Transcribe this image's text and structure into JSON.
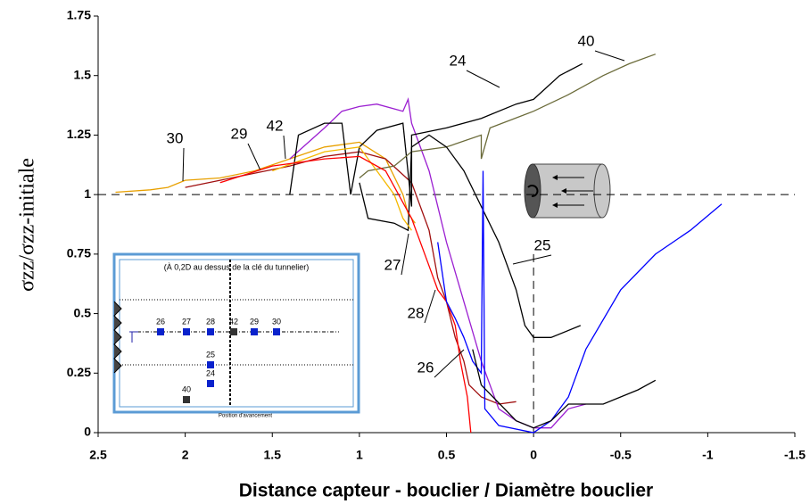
{
  "chart_data": {
    "type": "line",
    "x_label": "Distance capteur - bouclier / Diamètre bouclier",
    "y_label": "σzz/σzz-initiale",
    "xlim": [
      2.5,
      -1.5
    ],
    "xticks": [
      2.5,
      2,
      1.5,
      1,
      0.5,
      0,
      -0.5,
      -1,
      -1.5
    ],
    "ylim": [
      0,
      1.75
    ],
    "yticks": [
      0,
      0.25,
      0.5,
      0.75,
      1,
      1.25,
      1.5,
      1.75
    ],
    "hline": 1,
    "vline": 0,
    "series": [
      {
        "name": "30",
        "color": "#e8a000",
        "x": [
          2.4,
          2.2,
          2.1,
          2.0,
          1.8,
          1.6,
          1.4,
          1.2,
          1.0,
          0.85,
          0.75,
          0.72,
          0.68
        ],
        "values": [
          1.01,
          1.02,
          1.03,
          1.06,
          1.07,
          1.1,
          1.15,
          1.2,
          1.22,
          1.15,
          1.0,
          0.92,
          0.88
        ]
      },
      {
        "name": "29",
        "color": "#a01010",
        "x": [
          2.0,
          1.8,
          1.6,
          1.4,
          1.2,
          1.0,
          0.85,
          0.7,
          0.6,
          0.55,
          0.5,
          0.45,
          0.4,
          0.37,
          0.3,
          0.2,
          0.1
        ],
        "values": [
          1.03,
          1.06,
          1.09,
          1.12,
          1.16,
          1.18,
          1.15,
          1.05,
          0.85,
          0.65,
          0.55,
          0.4,
          0.3,
          0.2,
          0.15,
          0.12,
          0.13
        ]
      },
      {
        "name": "42",
        "color": "#9b1fd1",
        "x": [
          1.4,
          1.2,
          1.1,
          1.0,
          0.9,
          0.75,
          0.72,
          0.7,
          0.6,
          0.5,
          0.4,
          0.3,
          0.2,
          0.1,
          0,
          -0.1,
          -0.2,
          -0.3
        ],
        "values": [
          1.15,
          1.28,
          1.35,
          1.37,
          1.38,
          1.35,
          1.4,
          1.3,
          1.1,
          0.8,
          0.55,
          0.3,
          0.1,
          0.05,
          0.02,
          0.02,
          0.1,
          0.12
        ]
      },
      {
        "name": "24",
        "color": "#000000",
        "x": [
          1.4,
          1.35,
          1.2,
          1.1,
          1.05,
          1.0,
          0.9,
          0.75,
          0.7,
          0.7,
          0.5,
          0.3,
          0.1,
          0.0,
          -0.15,
          -0.28
        ],
        "values": [
          1.0,
          1.25,
          1.3,
          1.3,
          1.0,
          1.2,
          1.27,
          1.3,
          0.95,
          1.25,
          1.28,
          1.32,
          1.38,
          1.4,
          1.5,
          1.55
        ]
      },
      {
        "name": "40",
        "color": "#6b6b3a",
        "x": [
          1.0,
          0.95,
          0.8,
          0.7,
          0.5,
          0.3,
          0.3,
          0.25,
          0,
          -0.2,
          -0.4,
          -0.55,
          -0.7
        ],
        "values": [
          1.07,
          1.1,
          1.12,
          1.18,
          1.2,
          1.25,
          1.15,
          1.28,
          1.35,
          1.42,
          1.5,
          1.55,
          1.59
        ]
      },
      {
        "name": "25",
        "color": "#000000",
        "x": [
          1.0,
          0.95,
          0.8,
          0.72,
          0.7,
          0.6,
          0.5,
          0.4,
          0.3,
          0.2,
          0.1,
          0.05,
          0,
          -0.1,
          -0.27
        ],
        "values": [
          1.05,
          0.9,
          0.88,
          0.85,
          1.2,
          1.25,
          1.2,
          1.1,
          0.95,
          0.8,
          0.6,
          0.45,
          0.4,
          0.4,
          0.45
        ]
      },
      {
        "name": "27",
        "color": "#f5b800",
        "x": [
          1.5,
          1.2,
          1.0,
          0.9,
          0.8,
          0.75,
          0.7
        ],
        "values": [
          1.1,
          1.18,
          1.2,
          1.1,
          1.0,
          0.9,
          0.85
        ]
      },
      {
        "name": "28",
        "color": "#ff0000",
        "x": [
          1.8,
          1.5,
          1.2,
          1.0,
          0.85,
          0.7,
          0.6,
          0.55,
          0.5,
          0.45,
          0.42,
          0.38,
          0.36
        ],
        "values": [
          1.05,
          1.12,
          1.15,
          1.16,
          1.1,
          0.9,
          0.7,
          0.6,
          0.55,
          0.45,
          0.3,
          0.15,
          0.0
        ]
      },
      {
        "name": "26",
        "color": "#0000ff",
        "x": [
          0.55,
          0.5,
          0.45,
          0.4,
          0.35,
          0.3,
          0.29,
          0.28,
          0.2,
          0,
          -0.1,
          -0.2,
          -0.3,
          -0.5,
          -0.7,
          -0.9,
          -1.08
        ],
        "values": [
          0.8,
          0.55,
          0.48,
          0.4,
          0.3,
          0.25,
          1.1,
          0.1,
          0.03,
          0,
          0.05,
          0.15,
          0.35,
          0.6,
          0.75,
          0.85,
          0.96
        ]
      },
      {
        "color": "#000000",
        "x": [
          0.35,
          0.3,
          0.1,
          0,
          -0.1,
          -0.2,
          -0.4,
          -0.6,
          -0.7
        ],
        "values": [
          0.35,
          0.2,
          0.05,
          0.02,
          0.05,
          0.12,
          0.12,
          0.18,
          0.22
        ]
      }
    ]
  },
  "inset": {
    "caption": "(À 0,2D au dessus de la clé du tunnelier)",
    "sensors": [
      "26",
      "27",
      "28",
      "42",
      "29",
      "30",
      "25",
      "24",
      "40"
    ],
    "footer": "Position d'avancement"
  }
}
